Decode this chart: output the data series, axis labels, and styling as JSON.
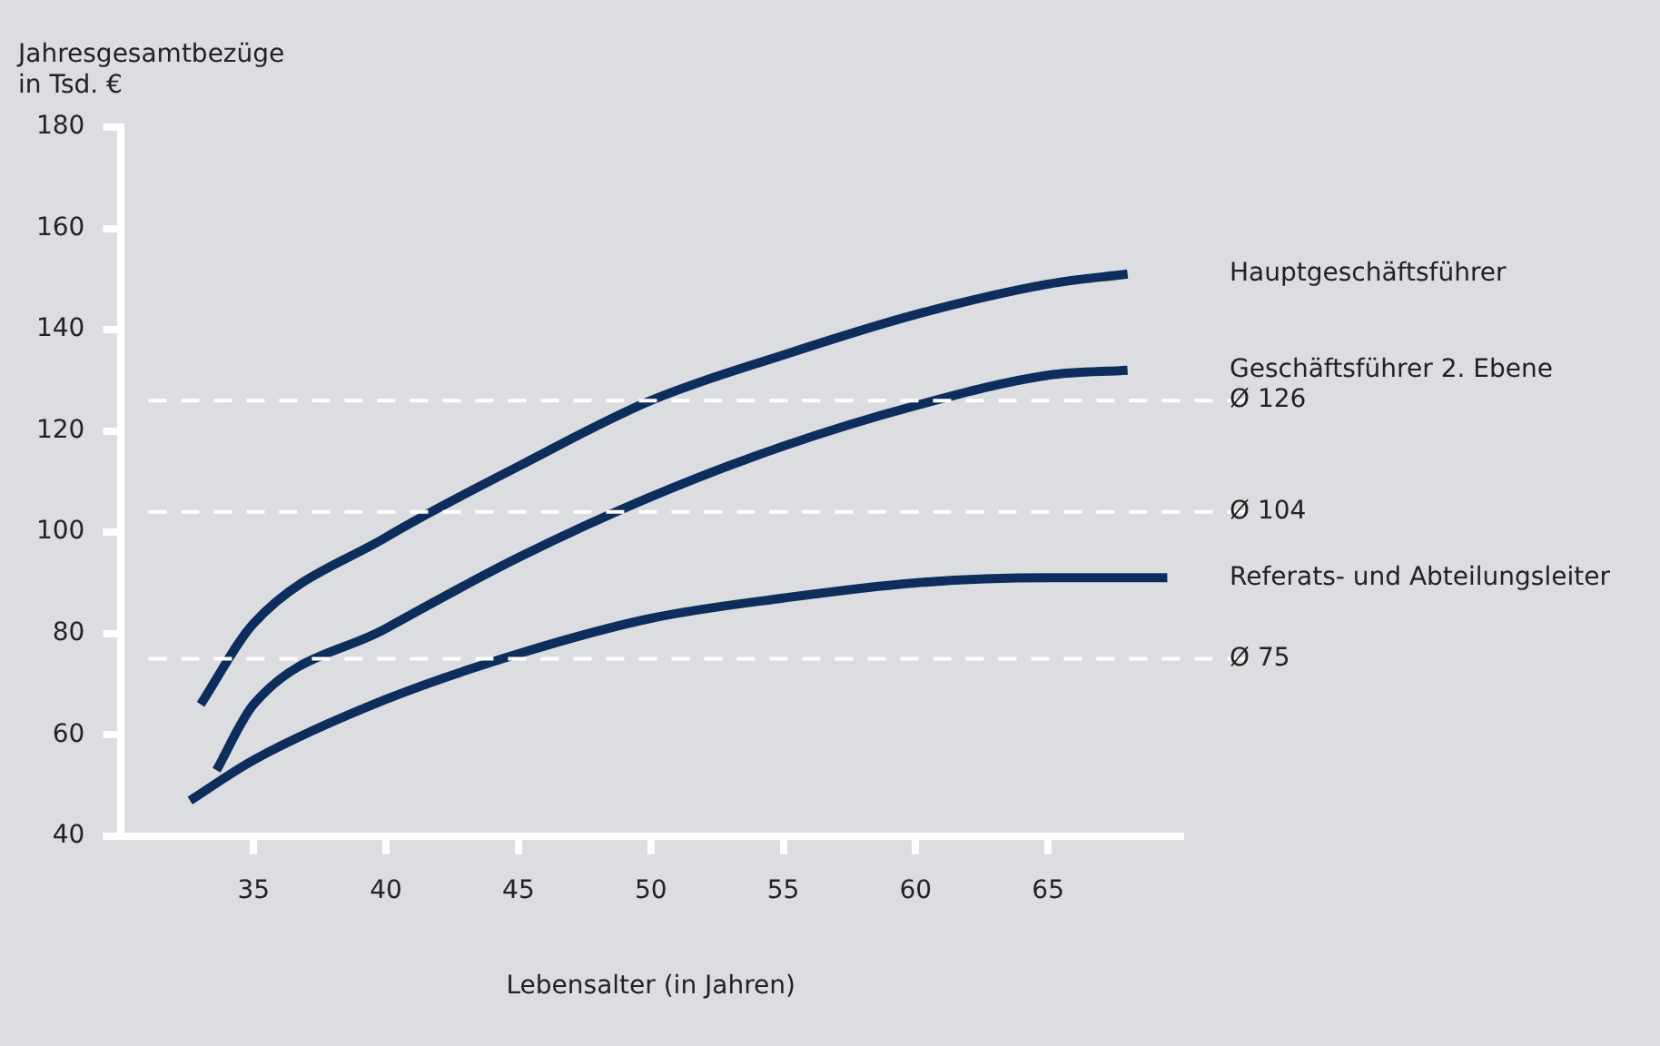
{
  "chart_data": {
    "type": "line",
    "ylabel": "Jahresgesamtbezüge in Tsd. €",
    "xlabel": "Lebensalter (in Jahren)",
    "xlim": [
      30,
      70
    ],
    "xticks": [
      35,
      40,
      45,
      50,
      55,
      60,
      65
    ],
    "ylim": [
      40,
      180
    ],
    "yticks": [
      40,
      60,
      80,
      100,
      120,
      140,
      160,
      180
    ],
    "grid": false,
    "legend": false,
    "marker": "none",
    "line_style": "solid",
    "series": [
      {
        "name": "Hauptgeschäftsführer",
        "color": "#0d2d5c",
        "x": [
          33,
          35,
          40,
          45,
          50,
          55,
          60,
          65,
          68
        ],
        "values": [
          66,
          82,
          99,
          113,
          126,
          135,
          143,
          149,
          151
        ]
      },
      {
        "name": "Geschäftsführer 2. Ebene",
        "color": "#0d2d5c",
        "x": [
          33.6,
          35,
          40,
          45,
          50,
          55,
          60,
          65,
          68
        ],
        "values": [
          53,
          66,
          81,
          95,
          107,
          117,
          125,
          131,
          132
        ]
      },
      {
        "name": "Referats- und Abteilungsleiter",
        "color": "#0d2d5c",
        "x": [
          32.6,
          35,
          40,
          45,
          50,
          55,
          60,
          65,
          69.5
        ],
        "values": [
          47,
          55,
          67,
          76,
          83,
          87,
          90,
          91,
          91
        ]
      }
    ],
    "ref_lines": [
      {
        "axis": "y",
        "value": 126,
        "label": "Ø 126",
        "color": "#ffffff",
        "line_style": "dashed"
      },
      {
        "axis": "y",
        "value": 104,
        "label": "Ø 104",
        "color": "#ffffff",
        "line_style": "dashed"
      },
      {
        "axis": "y",
        "value": 75,
        "label": "Ø 75",
        "color": "#ffffff",
        "line_style": "dashed"
      }
    ]
  }
}
